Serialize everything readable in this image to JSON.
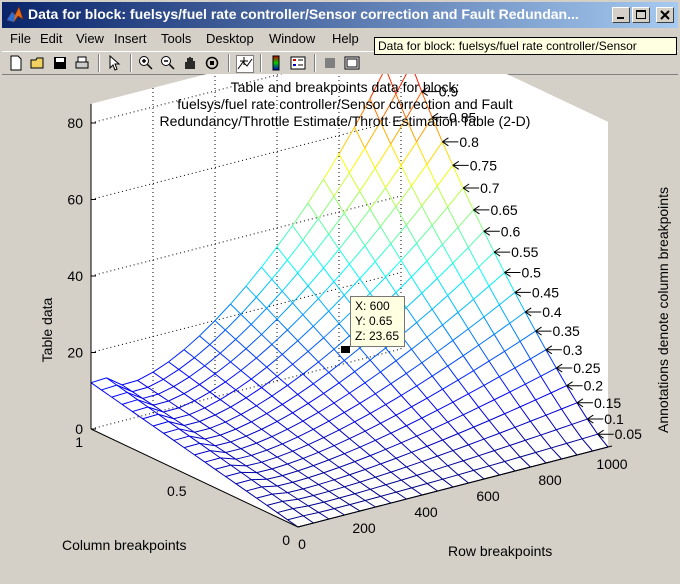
{
  "window": {
    "title": "Data for block: fuelsys/fuel rate controller/Sensor correction and  Fault Redundan..."
  },
  "menu": [
    "File",
    "Edit",
    "View",
    "Insert",
    "Tools",
    "Desktop",
    "Window",
    "Help"
  ],
  "tooltip": "Data for block: fuelsys/fuel rate controller/Sensor",
  "toolbar_icons": [
    "new-file-icon",
    "open-folder-icon",
    "save-icon",
    "print-icon",
    "pointer-icon",
    "zoom-in-icon",
    "zoom-out-icon",
    "pan-icon",
    "rotate-3d-icon",
    "data-cursor-icon",
    "colorbar-icon",
    "legend-icon",
    "hide-plot-tools-icon",
    "show-plot-tools-icon"
  ],
  "datatip": {
    "x": "X: 600",
    "y": "Y: 0.65",
    "z": "Z: 23.65"
  },
  "colors": {
    "title_gradient_start": "#0a246a",
    "title_gradient_end": "#a6caf0",
    "background": "#d4d0c8",
    "axes_bg": "#ffffff"
  },
  "chart_data": {
    "type": "surface",
    "title_lines": [
      "Table and breakpoints data for block:",
      "fuelsys/fuel rate controller/Sensor correction and  Fault",
      "Redundancy/Throttle Estimate/Thrott Estimation Table (2-D)"
    ],
    "xlabel": "Row breakpoints",
    "ylabel": "Column breakpoints",
    "zlabel": "Table data",
    "right_label": "Annotations denote column breakpoints",
    "x_ticks": [
      "0",
      "200",
      "400",
      "600",
      "800",
      "1000"
    ],
    "y_ticks": [
      "0",
      "0.5",
      "1"
    ],
    "z_ticks": [
      "0",
      "20",
      "40",
      "60",
      "80"
    ],
    "xlim": [
      0,
      1000
    ],
    "ylim": [
      0,
      1
    ],
    "zlim": [
      0,
      80
    ],
    "row_breakpoints": [
      0,
      50,
      100,
      150,
      200,
      250,
      300,
      350,
      400,
      450,
      500,
      550,
      600,
      650,
      700,
      750,
      800,
      850,
      900,
      950,
      1000
    ],
    "column_breakpoints": [
      0,
      0.05,
      0.1,
      0.15,
      0.2,
      0.25,
      0.3,
      0.35,
      0.4,
      0.45,
      0.5,
      0.55,
      0.6,
      0.65,
      0.7,
      0.75,
      0.8,
      0.85,
      0.9,
      0.95
    ],
    "annotations": [
      "0.95",
      "0.9",
      "0.85",
      "0.8",
      "0.75",
      "0.7",
      "0.65",
      "0.6",
      "0.55",
      "0.5",
      "0.45",
      "0.4",
      "0.35",
      "0.3",
      "0.25",
      "0.2",
      "0.15",
      "0.1",
      "0.05"
    ],
    "z_max": 86,
    "datatip_point": {
      "x": 600,
      "y": 0.65,
      "z": 23.65
    },
    "colormap": "jet",
    "grid": true
  }
}
